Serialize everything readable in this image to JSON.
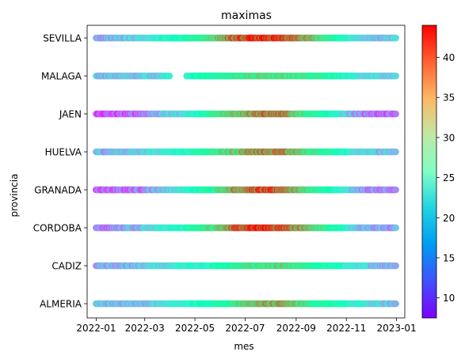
{
  "chart_data": {
    "type": "scatter",
    "title": "maximas",
    "xlabel": "mes",
    "ylabel": "provincia",
    "x_range": [
      "2021-12-21",
      "2023-01-11"
    ],
    "x_ticks": [
      "2022-01",
      "2022-03",
      "2022-05",
      "2022-07",
      "2022-09",
      "2022-11",
      "2023-01"
    ],
    "categories": [
      "ALMERIA",
      "CADIZ",
      "CORDOBA",
      "GRANADA",
      "HUELVA",
      "JAEN",
      "MALAGA",
      "SEVILLA"
    ],
    "colorbar": {
      "label": "",
      "min": 7.5,
      "max": 44,
      "ticks": [
        10,
        15,
        20,
        25,
        30,
        35,
        40
      ],
      "colormap": "rainbow"
    },
    "date_range": [
      "2022-01-01",
      "2022-12-31"
    ],
    "series": [
      {
        "category": "ALMERIA",
        "monthly_max_temp": [
          17,
          17,
          19,
          22,
          25,
          30,
          35,
          35,
          30,
          26,
          21,
          18
        ]
      },
      {
        "category": "CADIZ",
        "monthly_max_temp": [
          17,
          17,
          19,
          22,
          24,
          28,
          31,
          31,
          28,
          25,
          20,
          17
        ]
      },
      {
        "category": "CORDOBA",
        "monthly_max_temp": [
          14,
          17,
          21,
          24,
          31,
          38,
          42,
          40,
          34,
          27,
          18,
          15
        ]
      },
      {
        "category": "GRANADA",
        "monthly_max_temp": [
          12,
          13,
          17,
          21,
          28,
          36,
          40,
          39,
          31,
          24,
          16,
          13
        ]
      },
      {
        "category": "HUELVA",
        "monthly_max_temp": [
          17,
          18,
          21,
          24,
          28,
          33,
          38,
          37,
          31,
          27,
          20,
          17
        ]
      },
      {
        "category": "JAEN",
        "monthly_max_temp": [
          11,
          12,
          17,
          20,
          27,
          34,
          38,
          37,
          30,
          23,
          15,
          12
        ]
      },
      {
        "category": "MALAGA",
        "monthly_max_temp": [
          17,
          18,
          19,
          23,
          26,
          29,
          31,
          31,
          29,
          26,
          21,
          18
        ]
      },
      {
        "category": "SEVILLA",
        "monthly_max_temp": [
          16,
          18,
          22,
          25,
          31,
          38,
          42,
          40,
          35,
          28,
          20,
          17
        ]
      }
    ],
    "gaps": [
      {
        "category": "MALAGA",
        "from": "2022-04-01",
        "to": "2022-04-20"
      }
    ]
  }
}
